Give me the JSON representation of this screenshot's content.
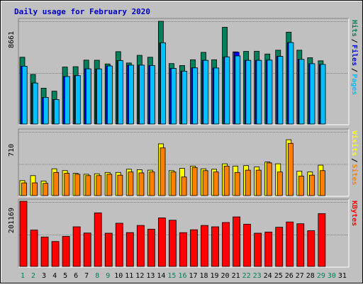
{
  "chart_data": {
    "type": "bar",
    "title": "Daily usage for February 2020",
    "days": [
      "1",
      "2",
      "3",
      "4",
      "5",
      "6",
      "7",
      "8",
      "9",
      "10",
      "11",
      "12",
      "13",
      "14",
      "15",
      "16",
      "17",
      "18",
      "19",
      "20",
      "21",
      "22",
      "23",
      "24",
      "25",
      "26",
      "27",
      "28",
      "29",
      "30",
      "31"
    ],
    "weekend_days": [
      "1",
      "2",
      "8",
      "9",
      "15",
      "16",
      "22",
      "23",
      "29",
      "30"
    ],
    "panels": [
      {
        "name": "hits-files-pages",
        "y_max_label": "8661",
        "y_max": 8661,
        "legend": [
          "Pages",
          "/",
          "Files",
          "/",
          "Hits"
        ],
        "series": [
          {
            "name": "Hits",
            "color": "#00805c",
            "values": [
              5590,
              4150,
              3000,
              2750,
              4770,
              4800,
              5350,
              5340,
              5030,
              6060,
              5110,
              5750,
              5590,
              8600,
              5060,
              4900,
              5380,
              6000,
              5380,
              8100,
              6040,
              6080,
              6090,
              5860,
              6180,
              7690,
              6180,
              5550,
              5290,
              null,
              null
            ]
          },
          {
            "name": "Files",
            "color": "#0000ff",
            "values": [
              4840,
              3430,
              2230,
              2050,
              3980,
              4050,
              4620,
              4610,
              4860,
              5310,
              4930,
              4930,
              4900,
              6800,
              4650,
              4420,
              4700,
              5330,
              4690,
              5620,
              6010,
              5330,
              5330,
              5350,
              5660,
              6820,
              5410,
              5050,
              4990,
              null,
              null
            ]
          },
          {
            "name": "Pages",
            "color": "#00c0ff",
            "values": [
              4840,
              3430,
              2230,
              2050,
              3980,
              4050,
              4620,
              4610,
              4860,
              5310,
              4930,
              4930,
              4900,
              6800,
              4650,
              4420,
              4700,
              5330,
              4690,
              5620,
              5700,
              5330,
              5330,
              5350,
              5660,
              6820,
              5410,
              5050,
              4990,
              null,
              null
            ]
          }
        ]
      },
      {
        "name": "visits-sites",
        "y_max_label": "710",
        "y_max": 710,
        "legend": [
          "Sites",
          "/",
          "Visits"
        ],
        "series": [
          {
            "name": "Visits",
            "color": "#ffff00",
            "values": [
              165,
              220,
              160,
              295,
              275,
              245,
              235,
              240,
              255,
              255,
              290,
              285,
              280,
              570,
              275,
              300,
              325,
              295,
              290,
              350,
              325,
              330,
              315,
              370,
              350,
              615,
              270,
              260,
              335,
              null,
              null
            ]
          },
          {
            "name": "Sites",
            "color": "#ff8000",
            "values": [
              140,
              140,
              135,
              255,
              245,
              235,
              220,
              220,
              235,
              225,
              260,
              250,
              260,
              525,
              260,
              205,
              310,
              275,
              260,
              325,
              255,
              280,
              280,
              360,
              260,
              575,
              215,
              225,
              275,
              null,
              null
            ]
          }
        ]
      },
      {
        "name": "kbytes",
        "y_max_label": "201169",
        "y_max": 201169,
        "legend": [
          "KBytes"
        ],
        "series": [
          {
            "name": "KBytes",
            "color": "#ff0000",
            "values": [
              201169,
              112230,
              90780,
              77090,
              92810,
              122400,
              103200,
              165440,
              102740,
              133460,
              104560,
              126590,
              115140,
              149890,
              142700,
              104440,
              113290,
              126600,
              122410,
              135620,
              152950,
              130460,
              102740,
              106170,
              121030,
              137330,
              131850,
              110380,
              163170,
              null,
              null
            ]
          }
        ]
      }
    ]
  }
}
